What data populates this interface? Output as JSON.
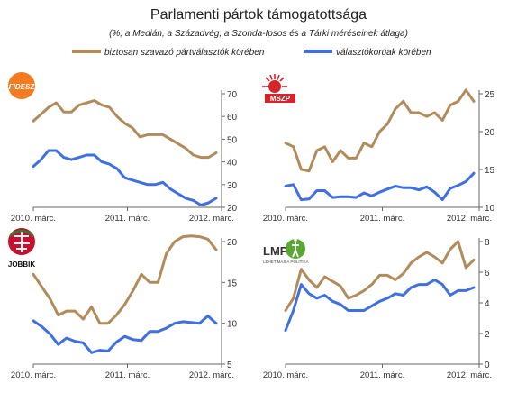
{
  "title": "Parlamenti pártok támogatottsága",
  "subtitle": "(%, a Medián, a Századvég, a Szonda-Ipsos és a Tárki méréseinek átlaga)",
  "legend": [
    {
      "label": "biztosan szavazó pártválasztók körében",
      "color": "#b28b5a"
    },
    {
      "label": "választókorúak körében",
      "color": "#3f6fe0"
    }
  ],
  "colors": {
    "decided_voters": "#b28b5a",
    "all_adults": "#3f6fe0",
    "axis": "#666666",
    "text": "#222222"
  },
  "x_tick_labels": [
    "2010. márc.",
    "2011. márc.",
    "2012. márc."
  ],
  "chart_data": [
    {
      "type": "line",
      "party": "Fidesz",
      "logo_text": "FIDESZ",
      "ylim": [
        20,
        70
      ],
      "yticks": [
        20,
        30,
        40,
        50,
        60,
        70
      ],
      "series": [
        {
          "name": "biztosan szavazó pártválasztók körében",
          "values": [
            58,
            61,
            64,
            66,
            62,
            62,
            65,
            66,
            67,
            65,
            64,
            60,
            57,
            55,
            51,
            52,
            52,
            52,
            50,
            48,
            46,
            43,
            42,
            42,
            44
          ]
        },
        {
          "name": "választókorúak körében",
          "values": [
            38,
            41,
            45,
            45,
            42,
            41,
            42,
            43,
            43,
            40,
            39,
            37,
            33,
            32,
            31,
            30,
            30,
            31,
            28,
            26,
            24,
            23,
            21,
            22,
            24
          ]
        }
      ]
    },
    {
      "type": "line",
      "party": "MSZP",
      "logo_text": "MSZP",
      "ylim": [
        10,
        25
      ],
      "yticks": [
        10,
        15,
        20,
        25
      ],
      "series": [
        {
          "name": "biztosan szavazó pártválasztók körében",
          "values": [
            18.5,
            18,
            15,
            14.8,
            17.5,
            18,
            16,
            17.5,
            16.5,
            16.5,
            18.5,
            18,
            20,
            21,
            23,
            24,
            22.5,
            22.5,
            22,
            22.5,
            21.5,
            23.5,
            24,
            25.5,
            24
          ]
        },
        {
          "name": "választókorúak körében",
          "values": [
            12.8,
            13,
            11,
            11.1,
            12.2,
            12.2,
            11.3,
            11.4,
            11.4,
            11.3,
            11.9,
            11.5,
            12,
            12.4,
            12.8,
            12.6,
            12.6,
            12.3,
            12.7,
            12,
            11,
            12.5,
            12.9,
            13.4,
            14.5
          ]
        }
      ]
    },
    {
      "type": "line",
      "party": "Jobbik",
      "logo_text": "JOBBIK",
      "ylim": [
        5,
        20
      ],
      "yticks": [
        5,
        10,
        15,
        20
      ],
      "series": [
        {
          "name": "biztosan szavazó pártválasztók körében",
          "values": [
            16,
            14.5,
            13,
            11,
            11.5,
            11.5,
            10.5,
            12,
            10,
            10,
            11,
            12.3,
            14,
            16,
            15,
            15,
            18.5,
            20,
            20.6,
            20.7,
            20.6,
            20.3,
            19
          ]
        },
        {
          "name": "választókorúak körében",
          "values": [
            10.3,
            9.6,
            8.7,
            7.4,
            8.2,
            7.8,
            7.6,
            6.4,
            6.7,
            6.6,
            7.7,
            8.4,
            8,
            7.9,
            9,
            9,
            9.4,
            10,
            10.2,
            10.1,
            10,
            10.9,
            10
          ]
        }
      ]
    },
    {
      "type": "line",
      "party": "LMP",
      "logo_text": "LMP",
      "logo_caption": "LEHET MÁS A POLITIKA",
      "ylim": [
        0,
        8
      ],
      "yticks": [
        0,
        2,
        4,
        6,
        8
      ],
      "series": [
        {
          "name": "biztosan szavazó pártválasztók körében",
          "values": [
            3.5,
            4.3,
            6.2,
            5.5,
            5,
            5.7,
            5.4,
            5.1,
            4.3,
            4.5,
            4.8,
            5.2,
            5.8,
            5.8,
            5.5,
            5.9,
            6.6,
            7,
            7.3,
            7,
            6.6,
            7.5,
            8,
            6.3,
            6.8
          ]
        },
        {
          "name": "választókorúak körében",
          "values": [
            2.2,
            3.5,
            5.2,
            4.6,
            4.3,
            4.5,
            4.1,
            3.9,
            3.5,
            3.5,
            3.5,
            3.8,
            4.1,
            4.3,
            4.6,
            4.5,
            5,
            5.2,
            5.2,
            5.5,
            5.2,
            4.5,
            4.8,
            4.8,
            5
          ]
        }
      ]
    }
  ]
}
